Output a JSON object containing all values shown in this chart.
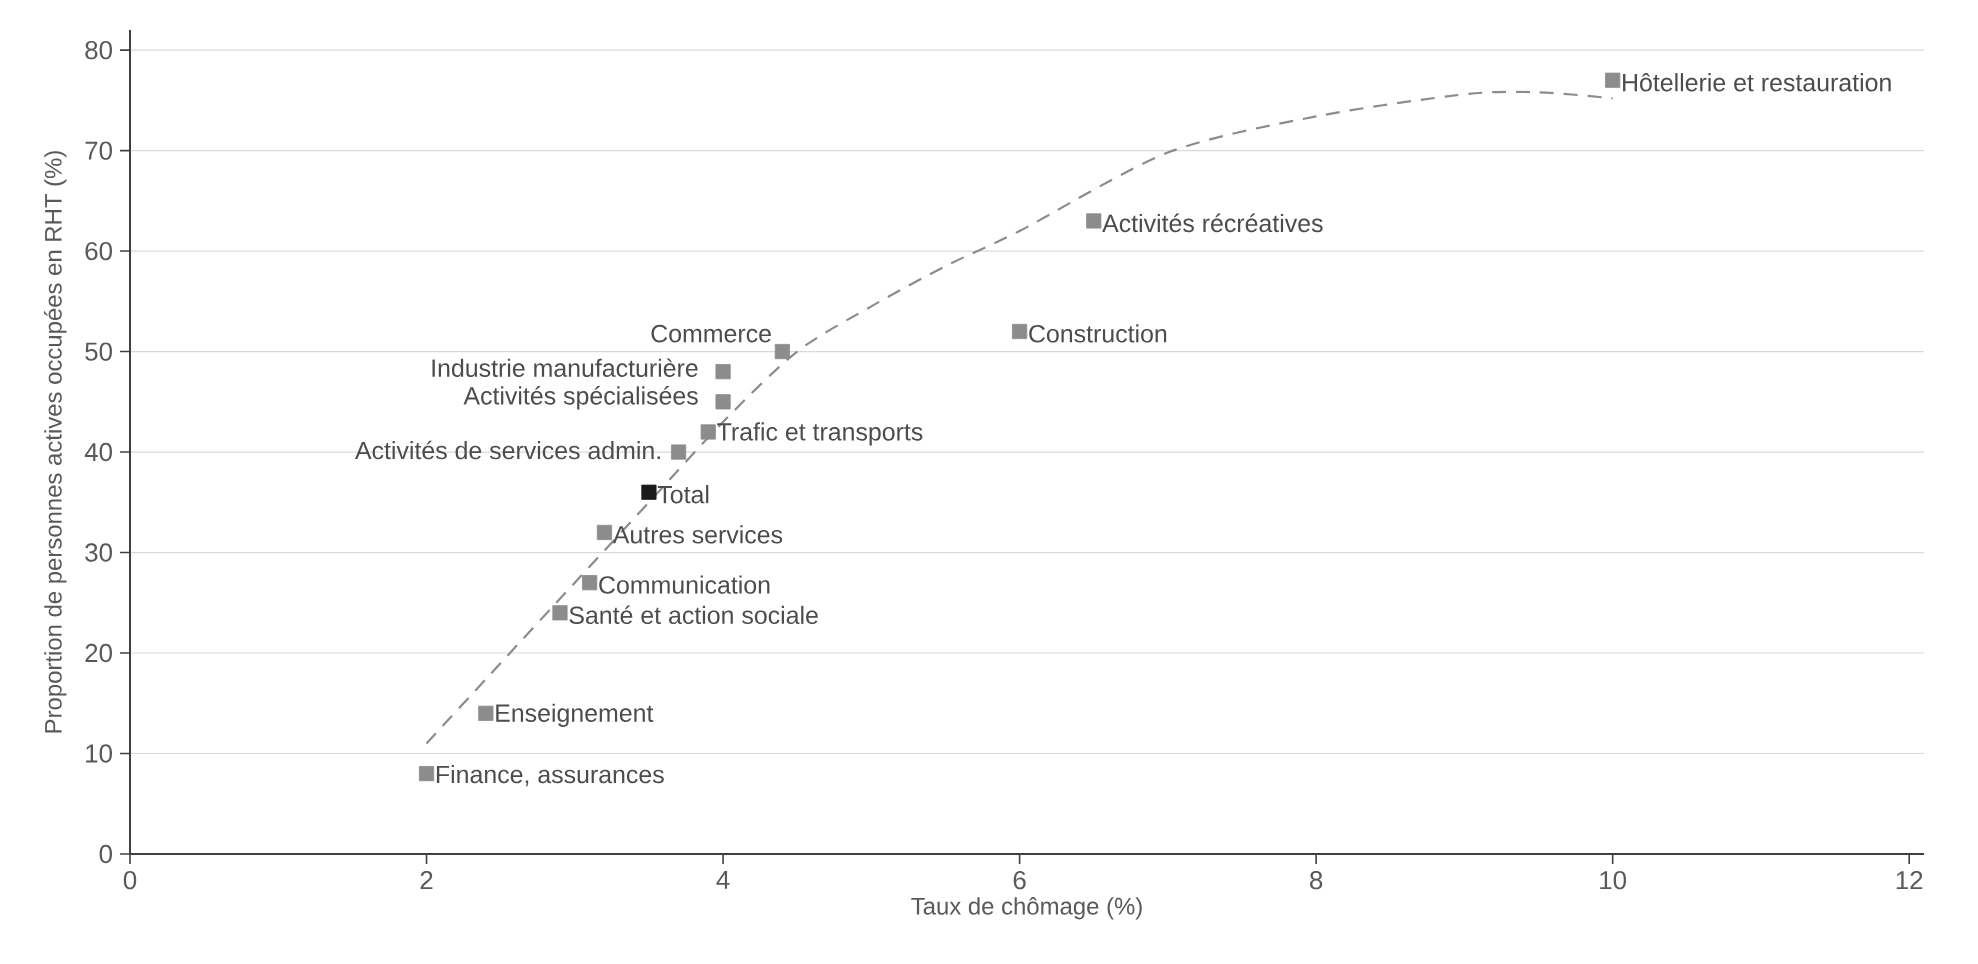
{
  "chart_data": {
    "type": "scatter",
    "xlabel": "Taux de chômage (%)",
    "ylabel": "Proportion de personnes actives occupées en RHT (%)",
    "xlim": [
      0,
      12.1
    ],
    "ylim": [
      0,
      82
    ],
    "xticks": [
      0,
      2,
      4,
      6,
      8,
      10,
      12
    ],
    "yticks": [
      0,
      10,
      20,
      30,
      40,
      50,
      60,
      70,
      80
    ],
    "grid": "y",
    "marker": "square",
    "series": [
      {
        "x": [
          10,
          6.5,
          6,
          4.4,
          4.0,
          4.0,
          3.9,
          3.7,
          3.5,
          3.2,
          3.1,
          2.9,
          2.4,
          2.0
        ],
        "values": [
          77,
          63,
          52,
          50,
          48,
          45,
          42,
          40,
          36,
          32,
          27,
          24,
          14,
          8
        ],
        "colors": [
          "#8c8c8c",
          "#8c8c8c",
          "#8c8c8c",
          "#8c8c8c",
          "#8c8c8c",
          "#8c8c8c",
          "#8c8c8c",
          "#8c8c8c",
          "#1a1a1a",
          "#8c8c8c",
          "#8c8c8c",
          "#8c8c8c",
          "#8c8c8c",
          "#8c8c8c"
        ]
      },
      {
        "type": "line",
        "x": [
          2,
          2.5,
          3,
          3.5,
          4,
          4.5,
          5,
          5.5,
          6,
          7,
          8,
          9,
          9.5,
          10
        ],
        "values": [
          11,
          19,
          27,
          35,
          43,
          50,
          54.5,
          58.5,
          62,
          69.8,
          73.4,
          75.6,
          75.8,
          75.2
        ],
        "color": "#8c8c8c",
        "line_style": "dashed",
        "marker": "none"
      }
    ],
    "annotations": [
      {
        "text": "Hôtellerie et restauration",
        "x": 10,
        "y": 77
      },
      {
        "text": "Activités récréatives",
        "x": 6.5,
        "y": 63
      },
      {
        "text": "Construction",
        "x": 6,
        "y": 52
      },
      {
        "text": "Commerce",
        "x": 4.4,
        "y": 50
      },
      {
        "text": "Industrie manufacturière",
        "x": 4.0,
        "y": 48
      },
      {
        "text": "Activités spécialisées",
        "x": 4.0,
        "y": 45
      },
      {
        "text": "Trafic et transports",
        "x": 3.9,
        "y": 42
      },
      {
        "text": "Activités de services admin.",
        "x": 3.7,
        "y": 40
      },
      {
        "text": "Total",
        "x": 3.5,
        "y": 36
      },
      {
        "text": "Autres services",
        "x": 3.2,
        "y": 32
      },
      {
        "text": "Communication",
        "x": 3.1,
        "y": 27
      },
      {
        "text": "Santé et action sociale",
        "x": 2.9,
        "y": 24
      },
      {
        "text": "Enseignement",
        "x": 2.4,
        "y": 14
      },
      {
        "text": "Finance, assurances",
        "x": 2.0,
        "y": 8
      }
    ]
  }
}
